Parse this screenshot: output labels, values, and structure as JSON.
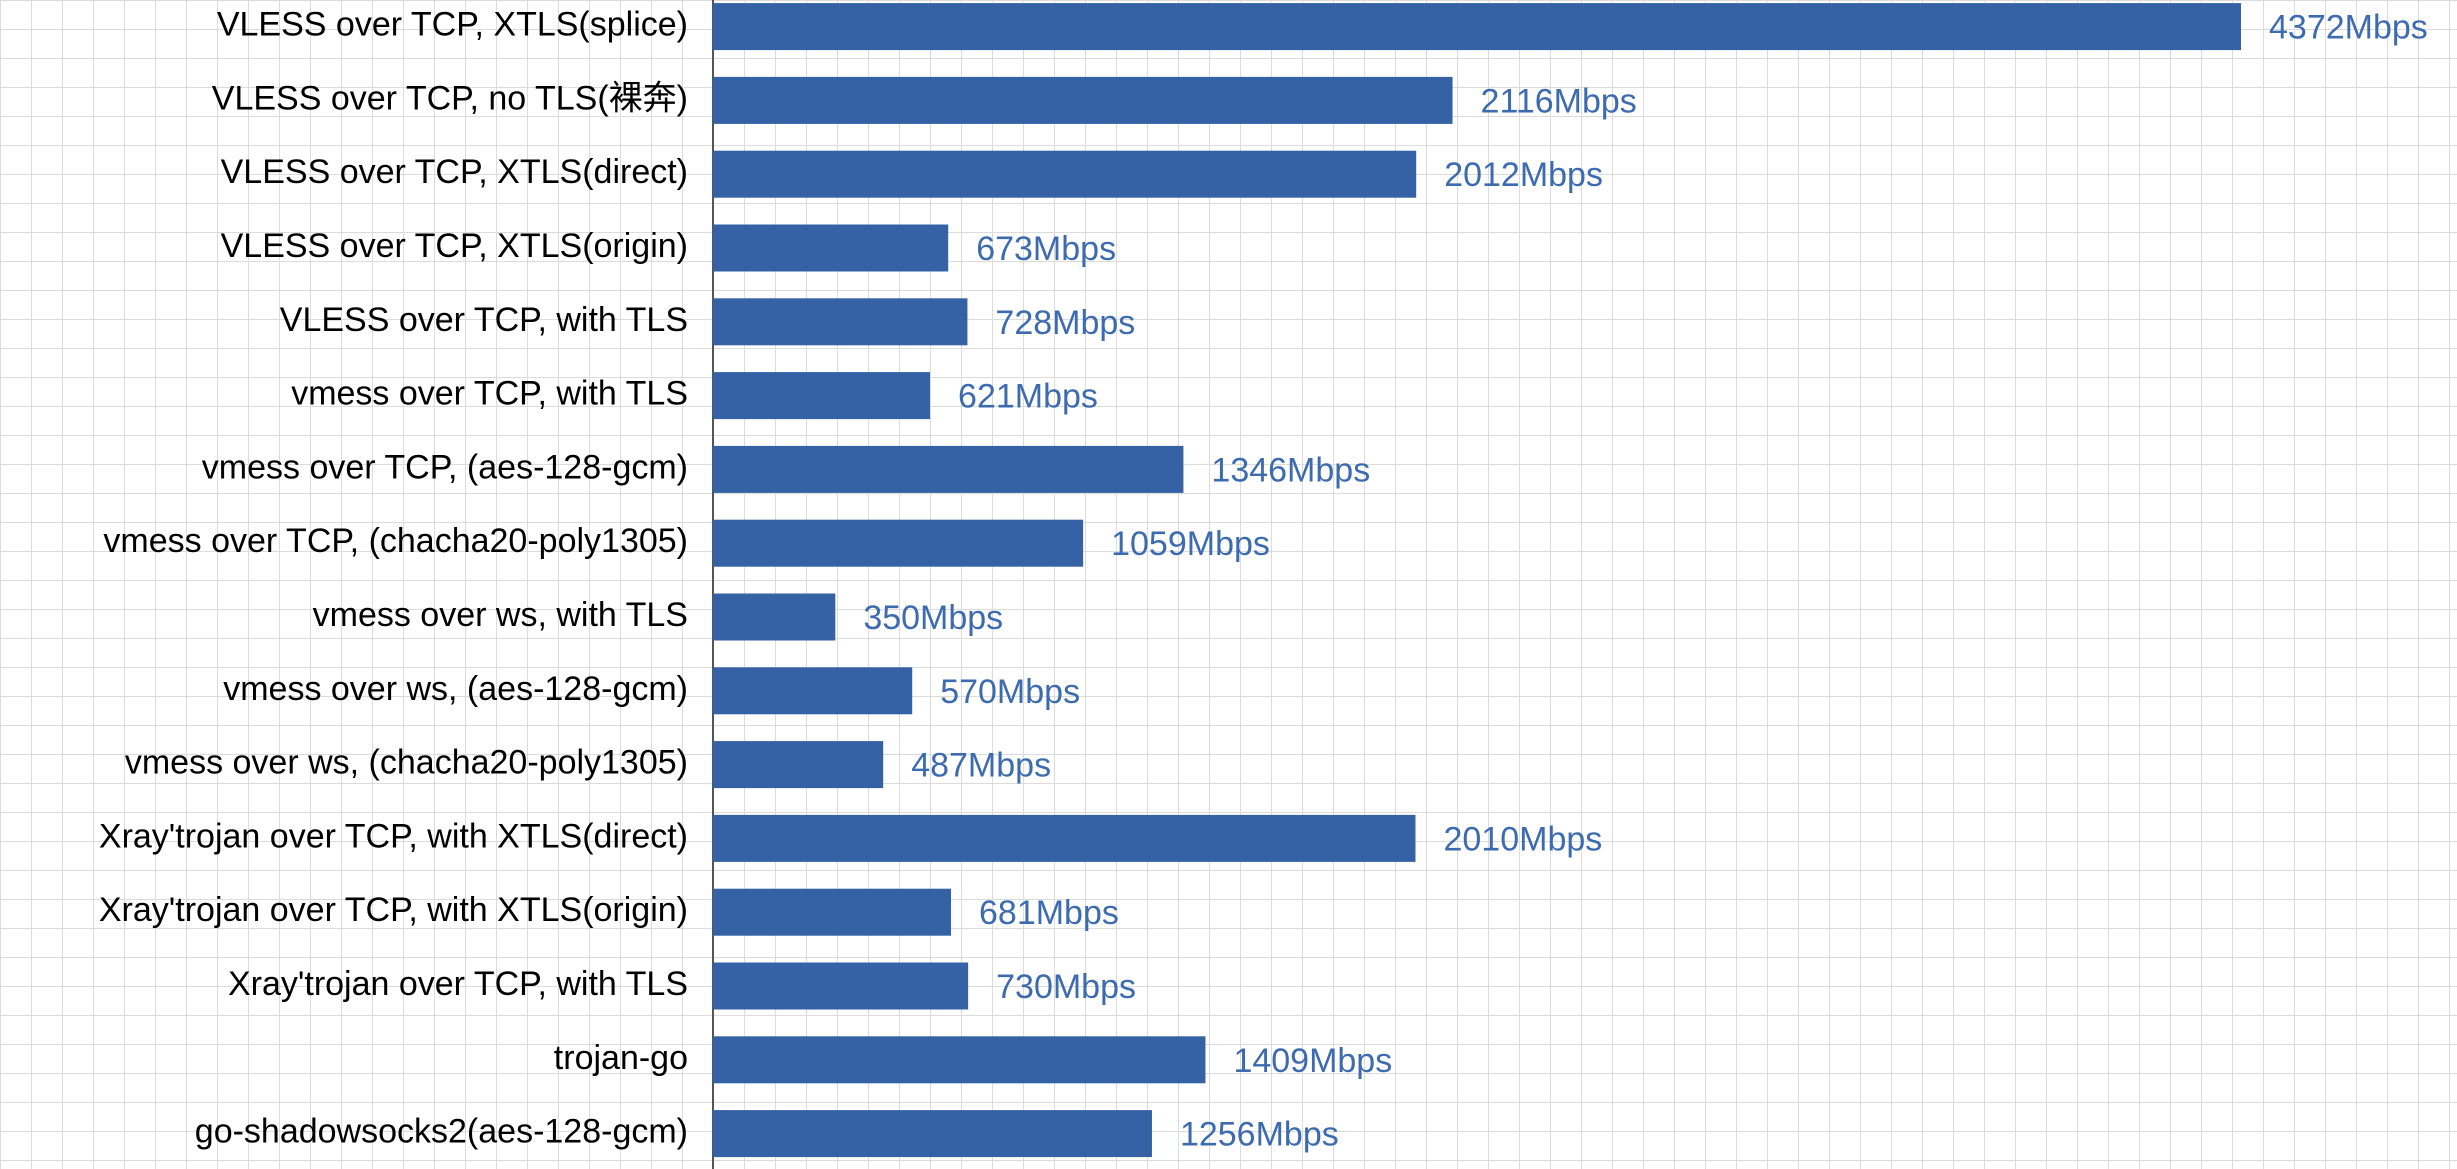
{
  "chart_data": {
    "type": "hbar",
    "categories": [
      "VLESS over TCP, XTLS(splice)",
      "VLESS over TCP, no TLS(裸奔)",
      "VLESS over TCP, XTLS(direct)",
      "VLESS over TCP, XTLS(origin)",
      "VLESS over TCP, with TLS",
      "vmess over TCP, with TLS",
      "vmess over TCP, (aes-128-gcm)",
      "vmess over TCP, (chacha20-poly1305)",
      "vmess over ws, with TLS",
      "vmess over ws, (aes-128-gcm)",
      "vmess over ws, (chacha20-poly1305)",
      "Xray'trojan over TCP, with XTLS(direct)",
      "Xray'trojan over TCP, with XTLS(origin)",
      "Xray'trojan over TCP, with TLS",
      "trojan-go",
      "go-shadowsocks2(aes-128-gcm)"
    ],
    "values": [
      4372,
      2116,
      2012,
      673,
      728,
      621,
      1346,
      1059,
      350,
      570,
      487,
      2010,
      681,
      730,
      1409,
      1256
    ],
    "value_labels": [
      "4372Mbps",
      "2116Mbps",
      "2012Mbps",
      "673Mbps",
      "728Mbps",
      "621Mbps",
      "1346Mbps",
      "1059Mbps",
      "350Mbps",
      "570Mbps",
      "487Mbps",
      "2010Mbps",
      "681Mbps",
      "730Mbps",
      "1409Mbps",
      "1256Mbps"
    ],
    "color": "#3462a4"
  }
}
